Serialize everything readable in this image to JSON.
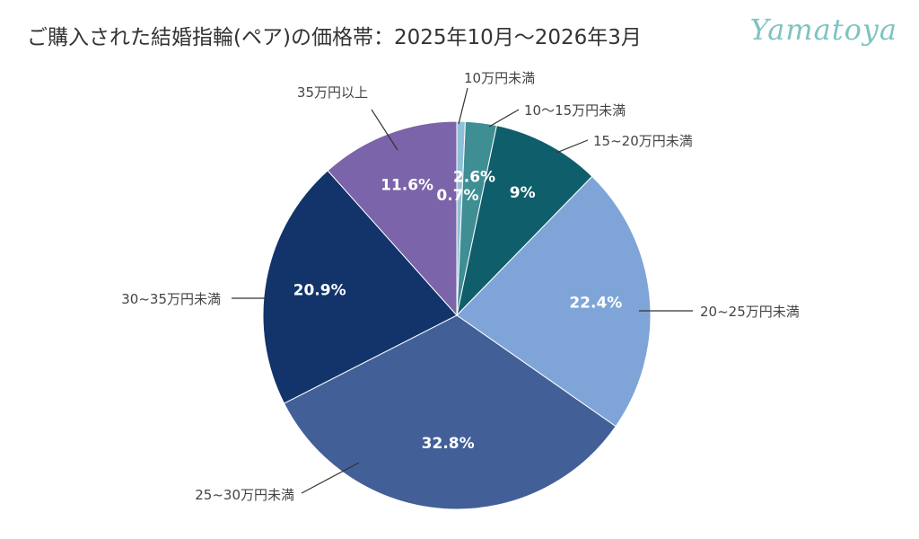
{
  "header": {
    "title": "ご購入された結婚指輪(ペア)の価格帯：2025年10月～2026年3月",
    "logo_text": "Yamatoya"
  },
  "chart_data": {
    "type": "pie",
    "title": "ご購入された結婚指輪(ペア)の価格帯：2025年10月～2026年3月",
    "legend": "none",
    "slices": [
      {
        "label": "10万円未満",
        "value": 0.7,
        "display": "0.7%",
        "color": "#8fc0d8"
      },
      {
        "label": "10〜15万円未満",
        "value": 2.6,
        "display": "2.6%",
        "color": "#3e8e94"
      },
      {
        "label": "15~20万円未満",
        "value": 9.0,
        "display": "9%",
        "color": "#0f5e6b"
      },
      {
        "label": "20~25万円未満",
        "value": 22.4,
        "display": "22.4%",
        "color": "#7fa5d8"
      },
      {
        "label": "25~30万円未満",
        "value": 32.8,
        "display": "32.8%",
        "color": "#435f97"
      },
      {
        "label": "30~35万円未満",
        "value": 20.9,
        "display": "20.9%",
        "color": "#12346a"
      },
      {
        "label": "35万円以上",
        "value": 11.6,
        "display": "11.6%",
        "color": "#7b64a9"
      }
    ]
  }
}
